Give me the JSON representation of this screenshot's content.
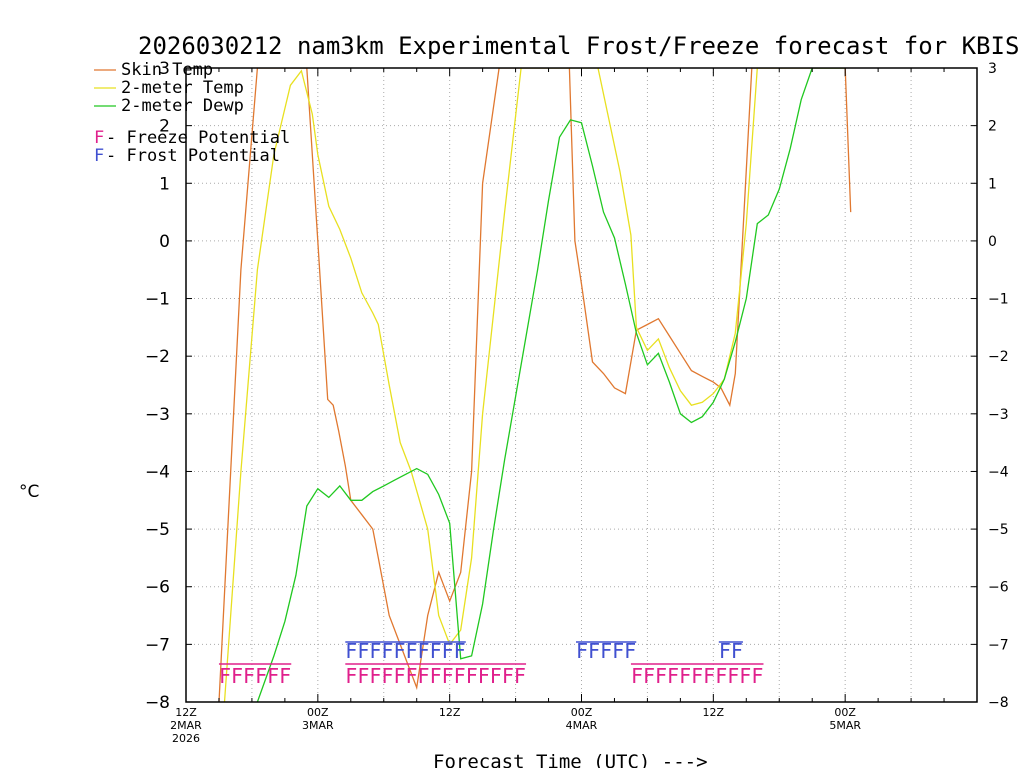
{
  "chart_data": {
    "type": "line",
    "title": "2026030212 nam3km Experimental Frost/Freeze forecast for KBIS",
    "ylabel": "°C",
    "xlabel": "Forecast Time (UTC) --->",
    "ylim": [
      -8,
      3
    ],
    "xlim": [
      0,
      72
    ],
    "grid": true,
    "y_ticks": [
      "−8",
      "−7",
      "−6",
      "−5",
      "−4",
      "−3",
      "−2",
      "−1",
      "0",
      "1",
      "2",
      "3"
    ],
    "x_ticks": [
      {
        "hour": 0,
        "time": "12Z",
        "date": "2MAR",
        "year": "2026"
      },
      {
        "hour": 12,
        "time": "00Z",
        "date": "3MAR",
        "year": ""
      },
      {
        "hour": 24,
        "time": "12Z",
        "date": "",
        "year": ""
      },
      {
        "hour": 36,
        "time": "00Z",
        "date": "4MAR",
        "year": ""
      },
      {
        "hour": 48,
        "time": "12Z",
        "date": "",
        "year": ""
      },
      {
        "hour": 60,
        "time": "00Z",
        "date": "5MAR",
        "year": ""
      }
    ],
    "legend": [
      {
        "label": "Skin Temp",
        "color": "#e07830"
      },
      {
        "label": "2-meter Temp",
        "color": "#e8e020"
      },
      {
        "label": "2-meter Dewp",
        "color": "#20c820"
      }
    ],
    "flag_legend": [
      {
        "letter": "F",
        "label": " - Freeze Potential",
        "color": "#e0208c"
      },
      {
        "letter": "F",
        "label": " - Frost Potential",
        "color": "#4050d0"
      }
    ],
    "series": [
      {
        "name": "Skin Temp",
        "color": "#e07830",
        "x": [
          3,
          5,
          6.5,
          10,
          11,
          12,
          12.9,
          13.4,
          13.9,
          14.5,
          15,
          16,
          17,
          17.5,
          18.5,
          19.5,
          21,
          22,
          23,
          24,
          25,
          26,
          27,
          28.5,
          29.5,
          34.9,
          35.4,
          36,
          37,
          38,
          39,
          40,
          41,
          42,
          43,
          44,
          45,
          46,
          47,
          48,
          48.7,
          49.5,
          50,
          51.5,
          52.5,
          60,
          60.5
        ],
        "y": [
          -8,
          -0.5,
          3,
          3,
          3,
          0,
          -2.75,
          -2.85,
          -3.3,
          -3.9,
          -4.5,
          -4.75,
          -5,
          -5.5,
          -6.5,
          -7,
          -7.75,
          -6.5,
          -5.75,
          -6.25,
          -5.75,
          -4,
          1,
          3,
          3,
          3,
          0,
          -0.75,
          -2.1,
          -2.3,
          -2.55,
          -2.65,
          -1.55,
          -1.45,
          -1.35,
          -1.65,
          -1.95,
          -2.25,
          -2.35,
          -2.45,
          -2.55,
          -2.85,
          -2.3,
          3,
          3,
          3,
          0.5
        ]
      },
      {
        "name": "2-meter Temp",
        "color": "#e8e020",
        "x": [
          3.5,
          5,
          6.5,
          8,
          9.5,
          10.5,
          11.5,
          12,
          13,
          14,
          15,
          16,
          17,
          17.5,
          18.5,
          19.5,
          20.5,
          22,
          23,
          24,
          25,
          26,
          27,
          29,
          30.5,
          37.5,
          38.5,
          39.5,
          40.5,
          41,
          42,
          43,
          44,
          45,
          46,
          47,
          48,
          49,
          50,
          51,
          52,
          60
        ],
        "y": [
          -8,
          -4,
          -0.5,
          1.5,
          2.7,
          2.95,
          2.2,
          1.5,
          0.6,
          0.2,
          -0.3,
          -0.9,
          -1.25,
          -1.45,
          -2.5,
          -3.5,
          -4,
          -5,
          -6.5,
          -7,
          -6.75,
          -5.5,
          -3,
          0.5,
          3,
          3,
          2.1,
          1.2,
          0.1,
          -1.5,
          -1.9,
          -1.7,
          -2.2,
          -2.6,
          -2.85,
          -2.8,
          -2.65,
          -2.4,
          -1.6,
          0.3,
          3,
          3
        ]
      },
      {
        "name": "2-meter Dewp",
        "color": "#20c820",
        "x": [
          6.5,
          8,
          9,
          10,
          11,
          12,
          13,
          14,
          15,
          16,
          17,
          18,
          19,
          20,
          21,
          22,
          23,
          24,
          25,
          26,
          27,
          28,
          29,
          30,
          31,
          32,
          33,
          34,
          35,
          36,
          37,
          38,
          39,
          40,
          41,
          42,
          43,
          44,
          45,
          46,
          47,
          48,
          49,
          50,
          51,
          52,
          53,
          54,
          55,
          56,
          57,
          58,
          59,
          60
        ],
        "y": [
          -8,
          -7.2,
          -6.6,
          -5.8,
          -4.6,
          -4.3,
          -4.45,
          -4.25,
          -4.5,
          -4.5,
          -4.35,
          -4.25,
          -4.15,
          -4.05,
          -3.95,
          -4.05,
          -4.4,
          -4.9,
          -7.25,
          -7.2,
          -6.3,
          -5,
          -3.8,
          -2.7,
          -1.6,
          -0.5,
          0.7,
          1.8,
          2.1,
          2.05,
          1.3,
          0.5,
          0.05,
          -0.75,
          -1.6,
          -2.15,
          -1.95,
          -2.45,
          -3,
          -3.15,
          -3.05,
          -2.8,
          -2.4,
          -1.75,
          -1,
          0.3,
          0.45,
          0.9,
          1.6,
          2.45,
          3,
          3,
          3,
          3
        ]
      }
    ],
    "flags": [
      {
        "type": "Freeze Potential",
        "text": "FFFFFF",
        "start": 3
      },
      {
        "type": "Frost Potential",
        "text": "FFFFFFFFFF",
        "start": 14.5
      },
      {
        "type": "Freeze Potential",
        "text": "FFFFFFFFFFFFFFF",
        "start": 14.5
      },
      {
        "type": "Frost Potential",
        "text": "FFFFF",
        "start": 35.5
      },
      {
        "type": "Freeze Potential",
        "text": "FFFFFFFFFFF",
        "start": 40.5
      },
      {
        "type": "Frost Potential",
        "text": "FF",
        "start": 48.5
      }
    ]
  }
}
